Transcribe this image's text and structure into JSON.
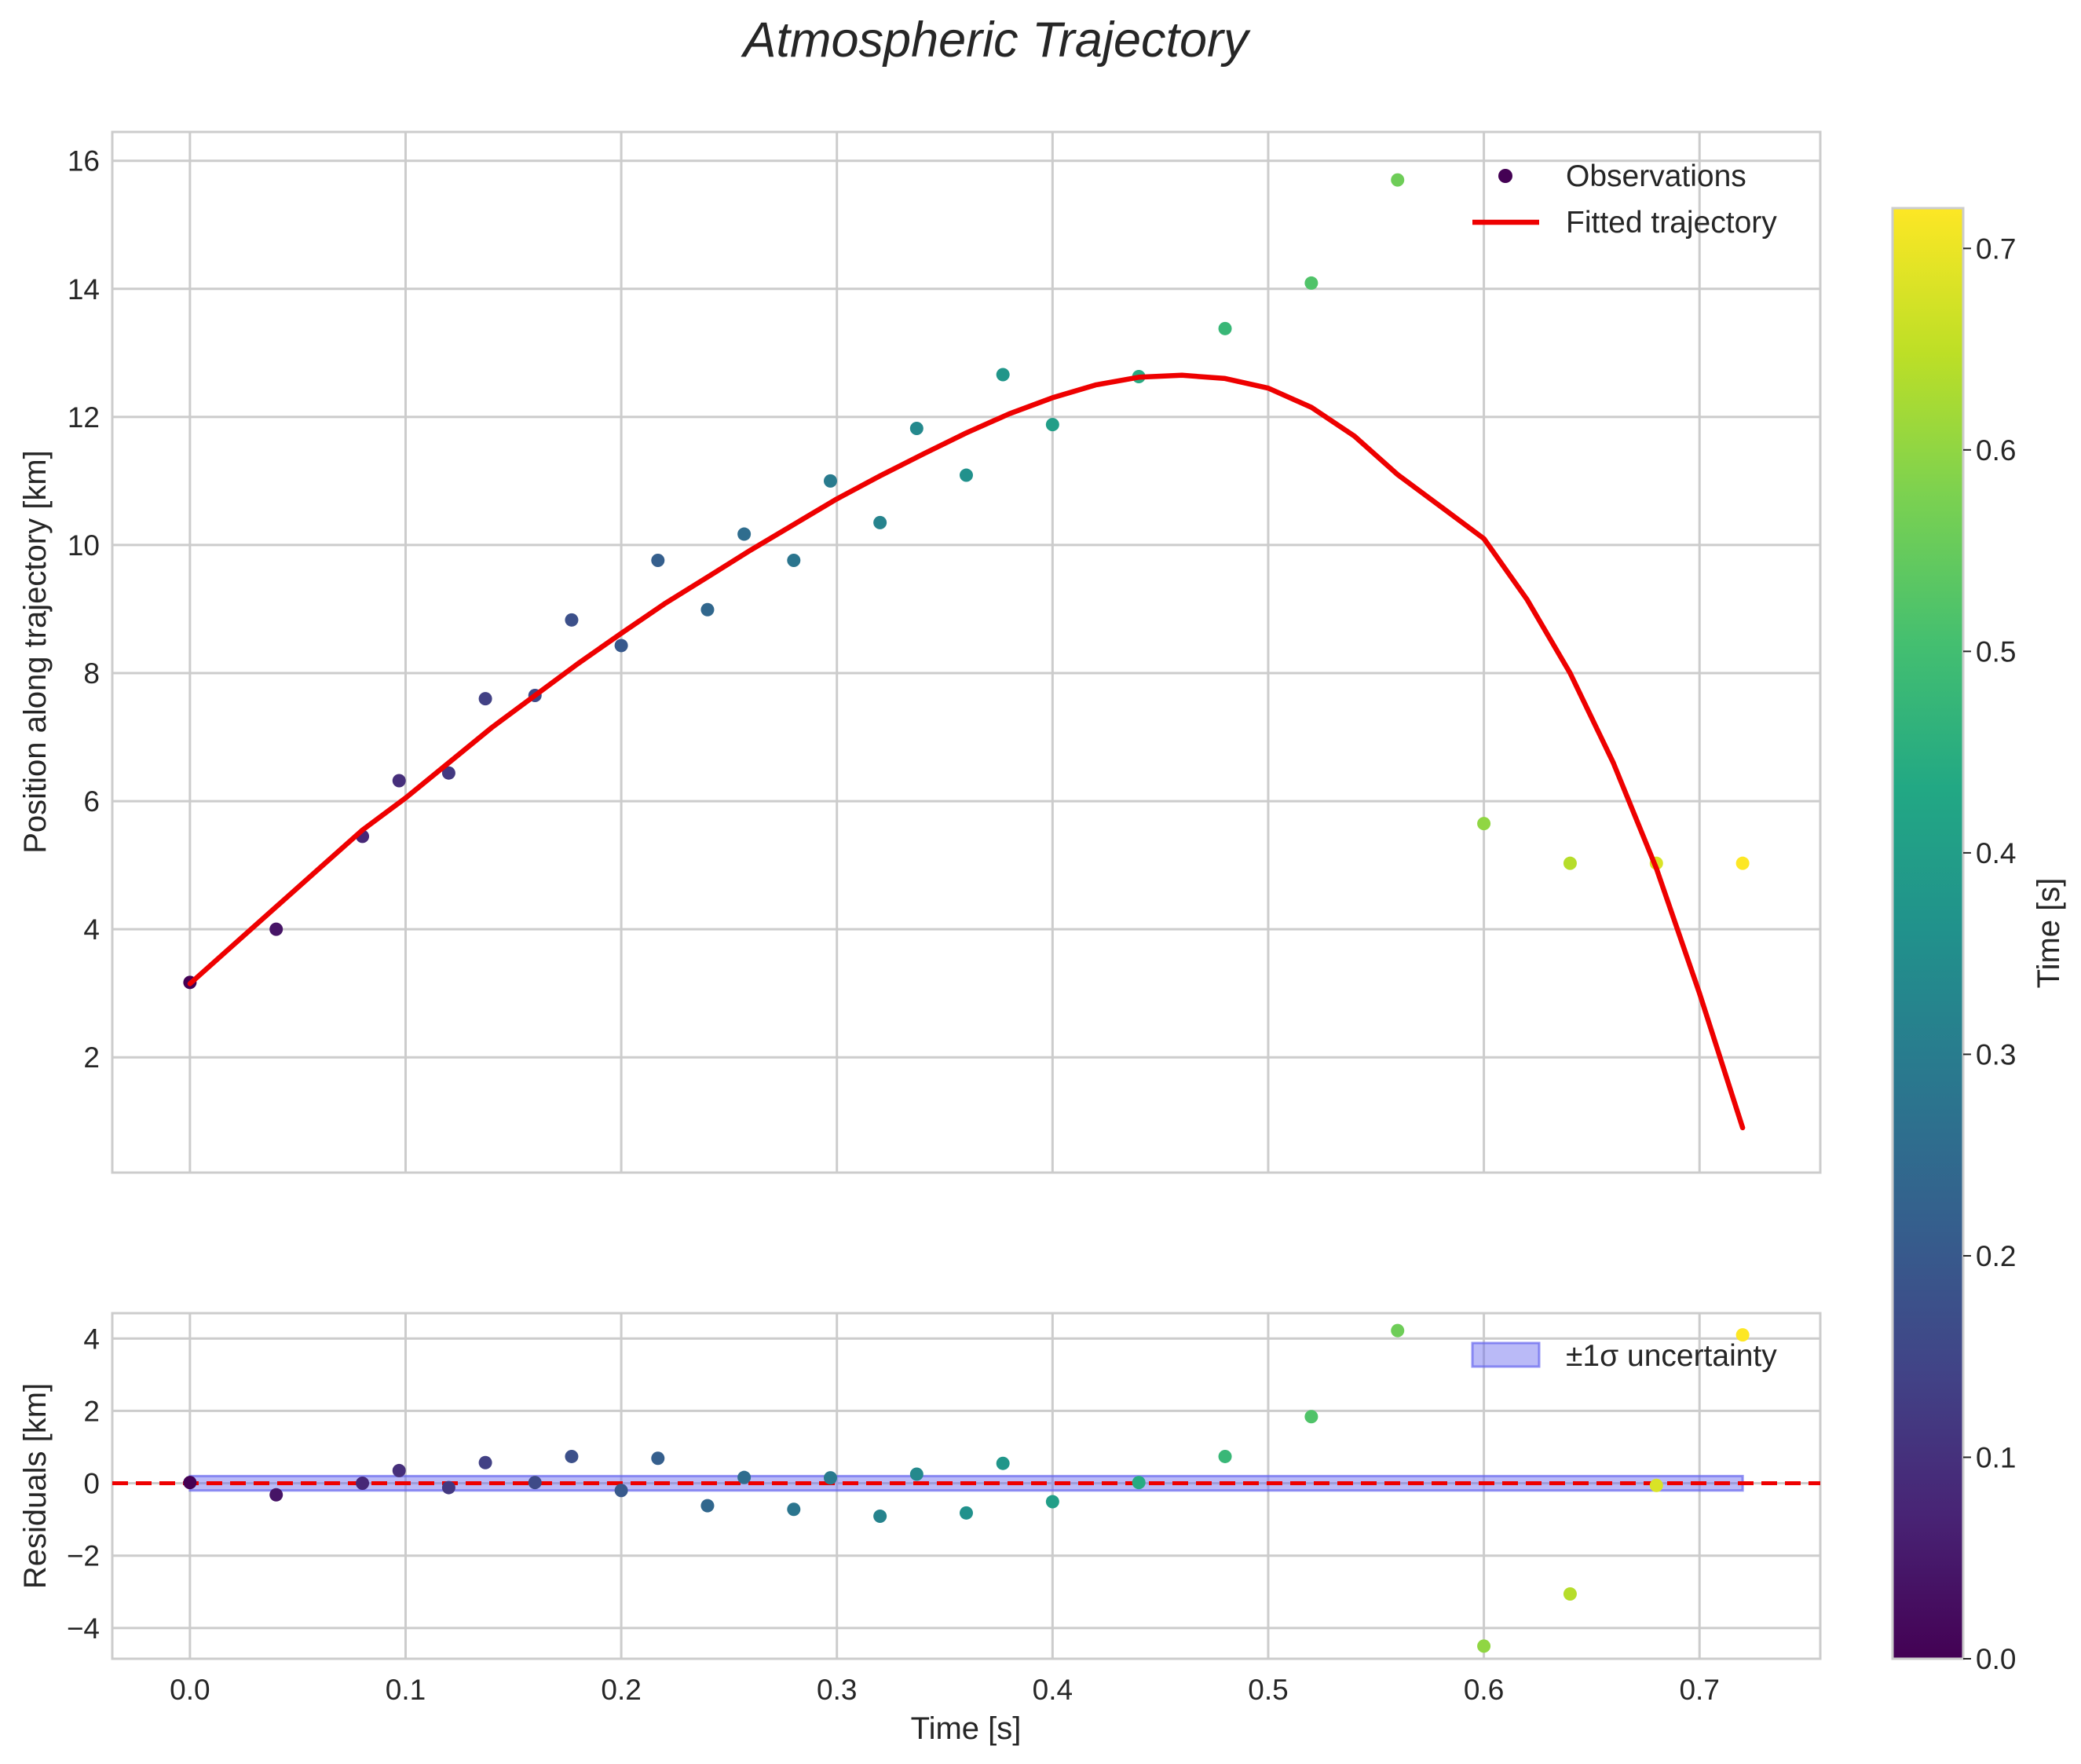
{
  "chart_data": {
    "type": "scatter",
    "title": "Atmospheric Trajectory",
    "main": {
      "ylabel": "Position along trajectory [km]",
      "xlim": [
        -0.036,
        0.756
      ],
      "ylim": [
        0.2,
        16.45
      ],
      "xticks": [
        0.0,
        0.1,
        0.2,
        0.3,
        0.4,
        0.5,
        0.6,
        0.7
      ],
      "yticks": [
        2,
        4,
        6,
        8,
        10,
        12,
        14,
        16
      ],
      "grid": true,
      "legend": {
        "position": "upper right",
        "entries": [
          "Observations",
          "Fitted trajectory"
        ]
      },
      "observations": {
        "name": "Observations",
        "t": [
          0.0,
          0.04,
          0.08,
          0.097,
          0.12,
          0.137,
          0.16,
          0.177,
          0.2,
          0.217,
          0.24,
          0.257,
          0.28,
          0.297,
          0.32,
          0.337,
          0.36,
          0.377,
          0.4,
          0.44,
          0.48,
          0.52,
          0.56,
          0.6,
          0.64,
          0.68,
          0.72
        ],
        "position": [
          3.17,
          4.0,
          5.45,
          6.32,
          6.44,
          7.6,
          7.65,
          8.83,
          8.43,
          9.76,
          8.99,
          10.17,
          9.76,
          11.0,
          10.35,
          11.82,
          11.09,
          12.66,
          11.88,
          12.63,
          13.38,
          14.09,
          15.7,
          5.65,
          5.03,
          5.03,
          5.03
        ]
      },
      "fit": {
        "name": "Fitted trajectory",
        "color": "#ee0000",
        "t": [
          0.0,
          0.02,
          0.04,
          0.06,
          0.08,
          0.1,
          0.12,
          0.14,
          0.16,
          0.18,
          0.2,
          0.22,
          0.24,
          0.26,
          0.28,
          0.3,
          0.32,
          0.34,
          0.36,
          0.38,
          0.4,
          0.42,
          0.44,
          0.46,
          0.48,
          0.5,
          0.52,
          0.54,
          0.56,
          0.58,
          0.6,
          0.62,
          0.64,
          0.66,
          0.68,
          0.7,
          0.72
        ],
        "position": [
          3.15,
          3.75,
          4.35,
          4.95,
          5.55,
          6.05,
          6.6,
          7.15,
          7.65,
          8.15,
          8.62,
          9.08,
          9.5,
          9.92,
          10.32,
          10.72,
          11.08,
          11.42,
          11.75,
          12.05,
          12.3,
          12.5,
          12.62,
          12.65,
          12.6,
          12.45,
          12.15,
          11.7,
          11.1,
          10.6,
          10.1,
          9.15,
          8.0,
          6.6,
          4.95,
          3.0,
          0.9
        ]
      }
    },
    "residuals": {
      "xlabel": "Time [s]",
      "ylabel": "Residuals [km]",
      "xlim": [
        -0.036,
        0.756
      ],
      "ylim": [
        -4.85,
        4.7
      ],
      "xticks": [
        0.0,
        0.1,
        0.2,
        0.3,
        0.4,
        0.5,
        0.6,
        0.7
      ],
      "yticks": [
        -4,
        -2,
        0,
        2,
        4
      ],
      "grid": true,
      "legend": {
        "position": "upper right",
        "entries": [
          "±1σ uncertainty"
        ]
      },
      "band_color": "#6666ee",
      "band_halfwidth": 0.2,
      "zero_line_color": "#ee0000",
      "t": [
        0.0,
        0.04,
        0.08,
        0.097,
        0.12,
        0.137,
        0.16,
        0.177,
        0.2,
        0.217,
        0.24,
        0.257,
        0.28,
        0.297,
        0.32,
        0.337,
        0.36,
        0.377,
        0.4,
        0.44,
        0.48,
        0.52,
        0.56,
        0.6,
        0.64,
        0.68,
        0.72
      ],
      "residual": [
        0.02,
        -0.32,
        0.0,
        0.35,
        -0.12,
        0.57,
        0.02,
        0.74,
        -0.2,
        0.69,
        -0.62,
        0.16,
        -0.72,
        0.15,
        -0.91,
        0.25,
        -0.82,
        0.55,
        -0.51,
        0.02,
        0.74,
        1.84,
        4.22,
        -4.5,
        -3.06,
        -0.06,
        4.1
      ]
    },
    "colorbar": {
      "label": "Time [s]",
      "min": 0.0,
      "max": 0.72,
      "ticks": [
        0.0,
        0.1,
        0.2,
        0.3,
        0.4,
        0.5,
        0.6,
        0.7
      ],
      "colormap": "viridis"
    }
  }
}
